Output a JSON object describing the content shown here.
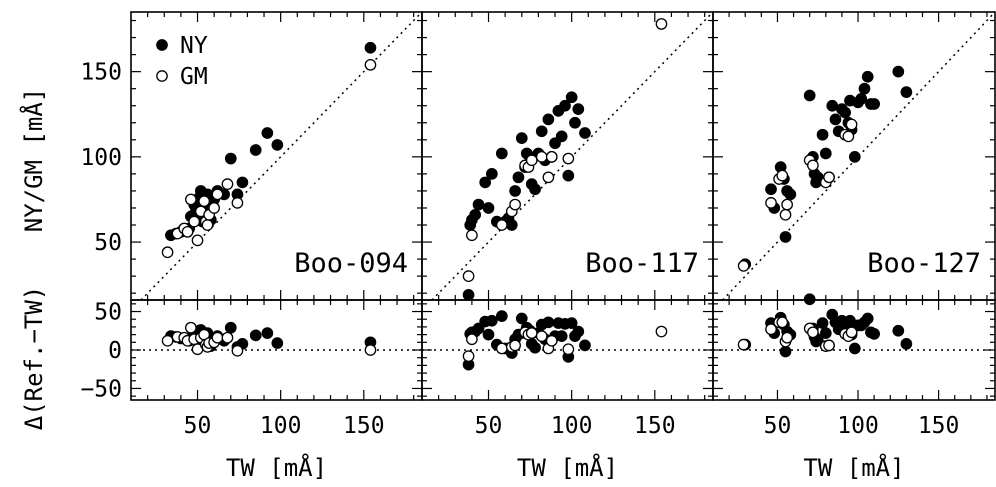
{
  "chart_data": {
    "type": "scatter",
    "ylabel_top": "NY/GM [mÅ]",
    "ylabel_bottom": "Δ(Ref.−TW)",
    "xlabel": "TW [mÅ]",
    "xlim": [
      10,
      185
    ],
    "ylim_top": [
      16,
      185
    ],
    "ylim_bottom": [
      -65,
      65
    ],
    "x_ticks": [
      50,
      100,
      150
    ],
    "y_ticks_top": [
      50,
      100,
      150
    ],
    "y_ticks_bottom": [
      -50,
      0,
      50
    ],
    "legend": {
      "position": "top-left",
      "entries": [
        {
          "label": "NY",
          "marker": "filled-circle"
        },
        {
          "label": "GM",
          "marker": "open-circle"
        }
      ]
    },
    "reference_line": "one-to-one (dotted)",
    "panels": [
      {
        "label": "Boo-094",
        "series": [
          {
            "name": "NY",
            "marker": "filled",
            "x": [
              34,
              37,
              40,
              43,
              45,
              46,
              48,
              49,
              50,
              51,
              52,
              53,
              54,
              55,
              56,
              57,
              58,
              60,
              62,
              66,
              70,
              74,
              77,
              85,
              92,
              98,
              154
            ],
            "y": [
              54,
              55,
              56,
              57,
              58,
              65,
              72,
              68,
              64,
              76,
              80,
              62,
              66,
              73,
              78,
              70,
              63,
              75,
              80,
              78,
              99,
              78,
              85,
              104,
              114,
              107,
              164
            ]
          },
          {
            "name": "GM",
            "marker": "open",
            "x": [
              32,
              38,
              42,
              44,
              46,
              48,
              50,
              52,
              54,
              55,
              56,
              57,
              60,
              62,
              68,
              74,
              154
            ],
            "y": [
              44,
              55,
              58,
              56,
              75,
              62,
              51,
              68,
              74,
              62,
              60,
              66,
              70,
              78,
              84,
              73,
              154
            ]
          }
        ],
        "delta": [
          {
            "name": "NY",
            "marker": "filled",
            "x": [
              34,
              37,
              40,
              43,
              45,
              46,
              48,
              49,
              50,
              51,
              52,
              53,
              54,
              55,
              56,
              57,
              58,
              60,
              62,
              66,
              70,
              74,
              77,
              85,
              92,
              98,
              154
            ],
            "y": [
              18,
              17,
              15,
              14,
              12,
              16,
              22,
              18,
              12,
              25,
              26,
              9,
              12,
              18,
              22,
              13,
              5,
              15,
              18,
              12,
              29,
              4,
              8,
              19,
              22,
              9,
              10
            ]
          },
          {
            "name": "GM",
            "marker": "open",
            "x": [
              32,
              38,
              42,
              44,
              46,
              48,
              50,
              52,
              54,
              55,
              56,
              57,
              60,
              62,
              68,
              74,
              154
            ],
            "y": [
              12,
              17,
              16,
              12,
              29,
              14,
              1,
              16,
              20,
              7,
              4,
              9,
              10,
              16,
              16,
              -1,
              0
            ]
          }
        ]
      },
      {
        "label": "Boo-117",
        "series": [
          {
            "name": "NY",
            "marker": "filled",
            "x": [
              38,
              39,
              40,
              42,
              44,
              48,
              50,
              52,
              55,
              58,
              60,
              62,
              64,
              66,
              68,
              70,
              72,
              73,
              75,
              76,
              78,
              80,
              82,
              84,
              86,
              88,
              90,
              92,
              94,
              96,
              98,
              100,
              102,
              104,
              108
            ],
            "y": [
              19,
              60,
              63,
              66,
              72,
              85,
              70,
              90,
              62,
              102,
              62,
              64,
              60,
              80,
              88,
              111,
              94,
              102,
              100,
              84,
              81,
              102,
              115,
              98,
              122,
              100,
              108,
              127,
              112,
              130,
              89,
              135,
              120,
              128,
              114
            ]
          },
          {
            "name": "GM",
            "marker": "open",
            "x": [
              38,
              40,
              58,
              64,
              66,
              72,
              74,
              76,
              82,
              86,
              88,
              98,
              154
            ],
            "y": [
              30,
              54,
              60,
              68,
              72,
              95,
              94,
              98,
              100,
              88,
              100,
              99,
              178
            ]
          }
        ],
        "delta": [
          {
            "name": "NY",
            "marker": "filled",
            "x": [
              38,
              39,
              40,
              42,
              44,
              48,
              50,
              52,
              55,
              58,
              60,
              62,
              64,
              66,
              68,
              70,
              72,
              73,
              75,
              76,
              78,
              80,
              82,
              84,
              86,
              88,
              90,
              92,
              94,
              96,
              98,
              100,
              102,
              104,
              108
            ],
            "y": [
              -19,
              21,
              23,
              24,
              28,
              37,
              20,
              38,
              7,
              44,
              2,
              2,
              -4,
              14,
              20,
              41,
              22,
              29,
              25,
              8,
              3,
              22,
              33,
              14,
              36,
              12,
              18,
              35,
              18,
              34,
              -9,
              35,
              18,
              24,
              6
            ]
          },
          {
            "name": "GM",
            "marker": "open",
            "x": [
              38,
              40,
              58,
              64,
              66,
              72,
              74,
              76,
              82,
              86,
              88,
              98,
              154
            ],
            "y": [
              -8,
              14,
              2,
              4,
              6,
              23,
              20,
              22,
              18,
              2,
              12,
              1,
              24
            ]
          }
        ]
      },
      {
        "label": "Boo-127",
        "series": [
          {
            "name": "NY",
            "marker": "filled",
            "x": [
              30,
              46,
              48,
              52,
              54,
              55,
              56,
              58,
              70,
              72,
              73,
              74,
              75,
              78,
              80,
              82,
              84,
              86,
              88,
              90,
              92,
              94,
              95,
              96,
              98,
              100,
              102,
              104,
              106,
              108,
              110,
              125,
              130
            ],
            "y": [
              37,
              81,
              70,
              94,
              87,
              53,
              80,
              78,
              136,
              100,
              90,
              85,
              88,
              113,
              102,
              88,
              130,
              122,
              115,
              128,
              126,
              120,
              133,
              116,
              100,
              132,
              134,
              140,
              147,
              131,
              131,
              150,
              138
            ]
          },
          {
            "name": "GM",
            "marker": "open",
            "x": [
              29,
              46,
              51,
              53,
              55,
              56,
              70,
              72,
              80,
              82,
              92,
              94,
              96
            ],
            "y": [
              36,
              73,
              87,
              89,
              66,
              72,
              98,
              95,
              85,
              88,
              113,
              112,
              119
            ]
          }
        ],
        "delta": [
          {
            "name": "NY",
            "marker": "filled",
            "x": [
              30,
              46,
              48,
              52,
              54,
              55,
              56,
              58,
              70,
              72,
              73,
              74,
              75,
              78,
              80,
              82,
              84,
              86,
              88,
              90,
              92,
              94,
              95,
              96,
              98,
              100,
              102,
              104,
              106,
              108,
              110,
              125,
              130
            ],
            "y": [
              7,
              35,
              22,
              42,
              33,
              -2,
              24,
              20,
              66,
              28,
              17,
              11,
              13,
              35,
              22,
              6,
              46,
              36,
              27,
              38,
              34,
              26,
              38,
              20,
              2,
              32,
              32,
              36,
              41,
              23,
              21,
              25,
              8
            ]
          },
          {
            "name": "GM",
            "marker": "open",
            "x": [
              29,
              46,
              51,
              53,
              55,
              56,
              70,
              72,
              80,
              82,
              92,
              94,
              96
            ],
            "y": [
              7,
              27,
              36,
              36,
              11,
              16,
              28,
              23,
              5,
              6,
              21,
              18,
              23
            ]
          }
        ]
      }
    ]
  }
}
